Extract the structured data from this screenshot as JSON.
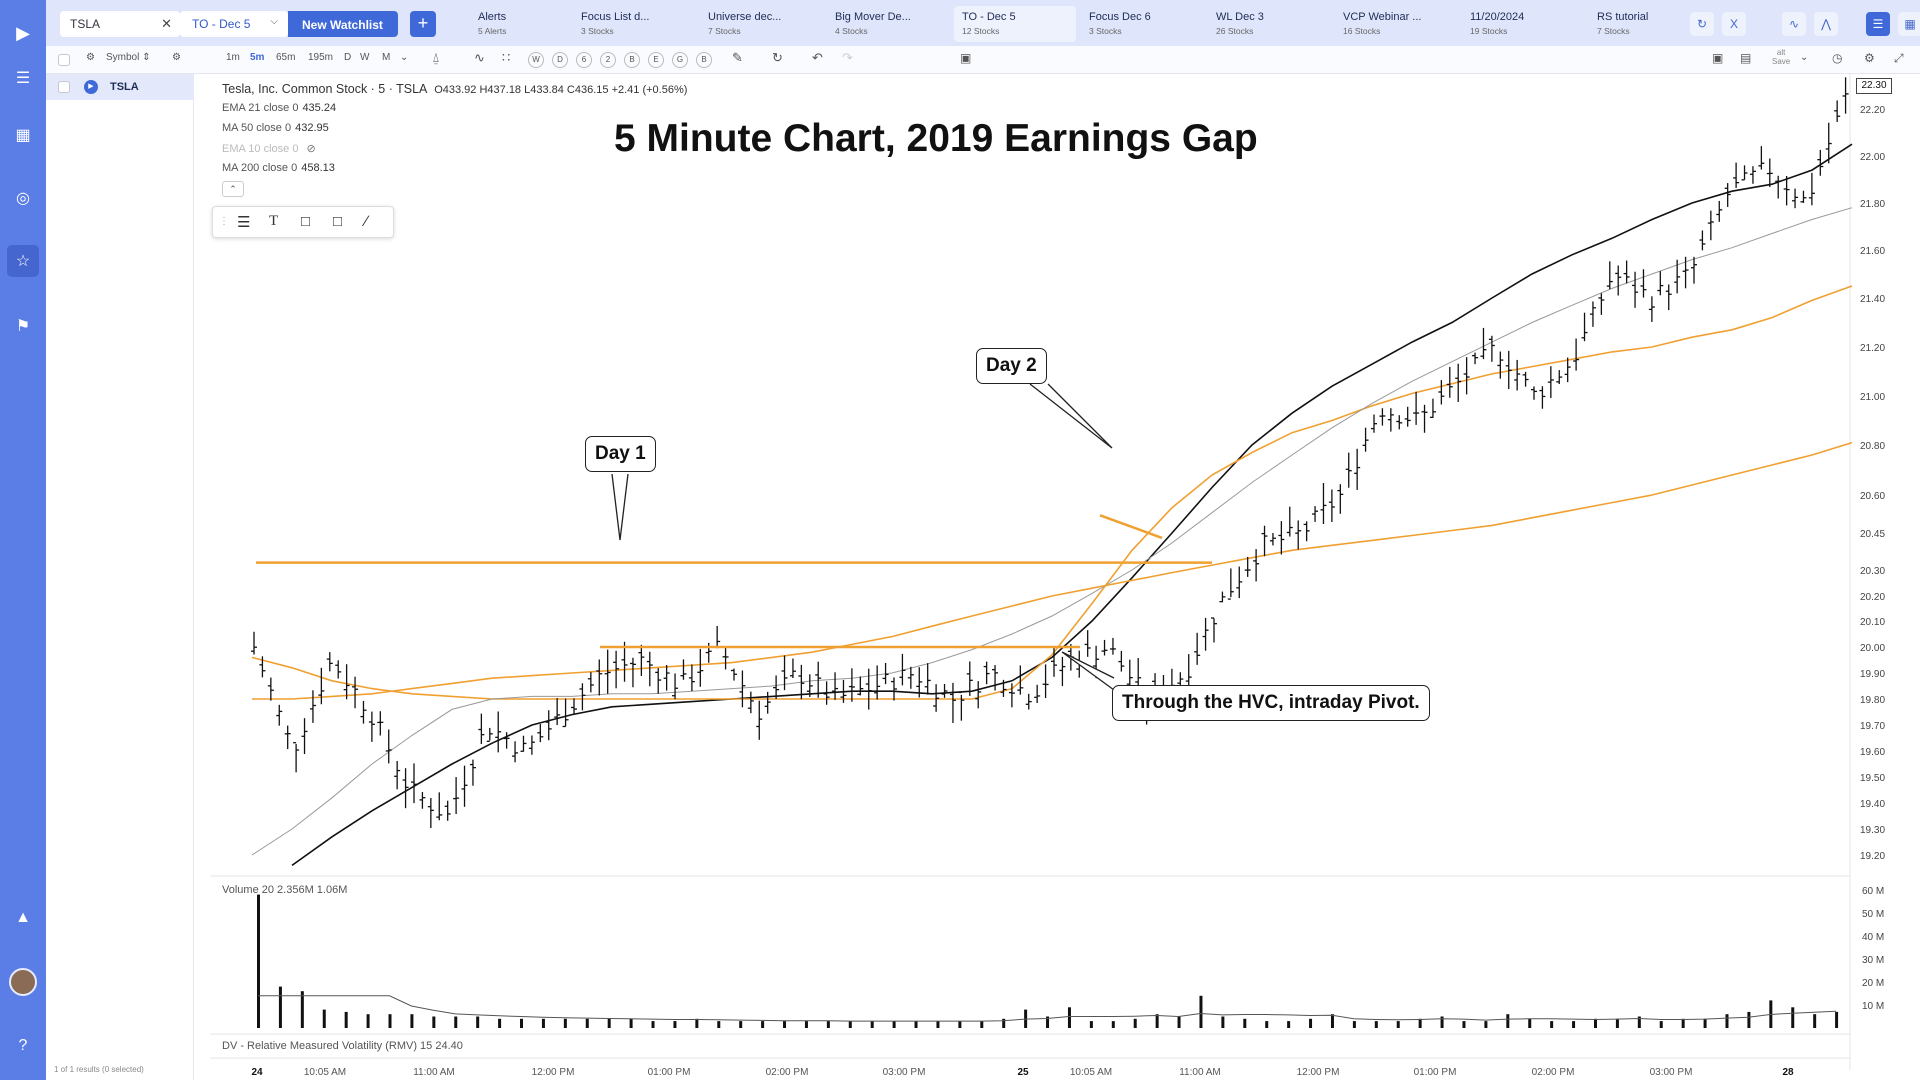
{
  "rail": {
    "icons": [
      "play-logo-icon",
      "menu-lines-icon",
      "layout-icon",
      "target-icon",
      "star-icon",
      "megaphone-icon",
      "graduation-cap-icon",
      "help-icon"
    ]
  },
  "topbar": {
    "search_value": "TSLA",
    "watchlist_label": "TO - Dec 5",
    "new_watchlist_label": "New Watchlist",
    "tabs": [
      {
        "label": "Alerts",
        "sub": "5 Alerts"
      },
      {
        "label": "Focus List d...",
        "sub": "3 Stocks"
      },
      {
        "label": "Universe dec...",
        "sub": "7 Stocks"
      },
      {
        "label": "Big Mover De...",
        "sub": "4 Stocks"
      },
      {
        "label": "TO - Dec 5",
        "sub": "12 Stocks"
      },
      {
        "label": "Focus Dec 6",
        "sub": "3 Stocks"
      },
      {
        "label": "WL Dec 3",
        "sub": "26 Stocks"
      },
      {
        "label": "VCP Webinar ...",
        "sub": "16 Stocks"
      },
      {
        "label": "11/20/2024",
        "sub": "19 Stocks"
      },
      {
        "label": "RS tutorial",
        "sub": "7 Stocks"
      }
    ]
  },
  "toolbar": {
    "symbol_label": "Symbol",
    "intervals": [
      "1m",
      "5m",
      "65m",
      "195m",
      "D",
      "W",
      "M"
    ],
    "active_interval": "5m",
    "circle_buttons": [
      "W",
      "D",
      "6",
      "2",
      "B",
      "E",
      "G",
      "B"
    ],
    "save_label": "Save",
    "alt_label": "alt"
  },
  "symlist": {
    "symbol": "TSLA",
    "footer": "1 of 1 results (0 selected)"
  },
  "chart": {
    "header": {
      "name": "Tesla, Inc. Common Stock · 5 · TSLA",
      "ohlc": "O433.92 H437.18 L433.84 C436.15 +2.41 (+0.56%)"
    },
    "legends": [
      {
        "label": "EMA 21 close 0",
        "value": "435.24"
      },
      {
        "label": "MA 50 close 0",
        "value": "432.95"
      },
      {
        "label": "EMA 10 close 0",
        "value": ""
      },
      {
        "label": "MA 200 close 0",
        "value": "458.13"
      }
    ],
    "title": "5 Minute Chart, 2019 Earnings Gap",
    "callouts": {
      "day1": "Day 1",
      "day2": "Day 2",
      "pivot": "Through the HVC, intraday Pivot."
    },
    "last_price": "22.30",
    "volume_legend": "Volume 20  2.356M  1.06M",
    "rmv_legend": "DV - Relative Measured Volatility (RMV) 15  24.40"
  },
  "chart_data": {
    "type": "line",
    "title": "5 Minute Chart, 2019 Earnings Gap",
    "xlabel": "",
    "ylabel": "",
    "y_ticks": [
      "22.20",
      "22.00",
      "21.80",
      "21.60",
      "21.40",
      "21.20",
      "21.00",
      "20.80",
      "20.60",
      "20.45",
      "20.30",
      "20.20",
      "20.10",
      "20.00",
      "19.90",
      "19.80",
      "19.70",
      "19.60",
      "19.50",
      "19.40",
      "19.30",
      "19.20"
    ],
    "volume_ticks": [
      "60 M",
      "50 M",
      "40 M",
      "30 M",
      "20 M",
      "10 M"
    ],
    "x_ticks": [
      {
        "label": "24",
        "bold": true
      },
      {
        "label": "10:05 AM"
      },
      {
        "label": "11:00 AM"
      },
      {
        "label": "12:00 PM"
      },
      {
        "label": "01:00 PM"
      },
      {
        "label": "02:00 PM"
      },
      {
        "label": "03:00 PM"
      },
      {
        "label": "25",
        "bold": true
      },
      {
        "label": "10:05 AM"
      },
      {
        "label": "11:00 AM"
      },
      {
        "label": "12:00 PM"
      },
      {
        "label": "01:00 PM"
      },
      {
        "label": "02:00 PM"
      },
      {
        "label": "03:00 PM"
      },
      {
        "label": "28",
        "bold": true
      }
    ],
    "series": [
      {
        "name": "EMA 21 close 0",
        "color": "#111111",
        "values": [
          19.05,
          19.16,
          19.27,
          19.37,
          19.46,
          19.55,
          19.63,
          19.7,
          19.74,
          19.77,
          19.78,
          19.79,
          19.8,
          19.81,
          19.82,
          19.83,
          19.83,
          19.82,
          19.83,
          19.87,
          19.96,
          20.1,
          20.27,
          20.45,
          20.63,
          20.8,
          20.93,
          21.04,
          21.13,
          21.22,
          21.3,
          21.4,
          21.5,
          21.58,
          21.65,
          21.73,
          21.8,
          21.85,
          21.88,
          21.94,
          22.05
        ]
      },
      {
        "name": "EMA 10 close 0",
        "color": "#f0a030",
        "values": [
          19.96,
          19.92,
          19.87,
          19.84,
          19.82,
          19.81,
          19.8,
          19.8,
          19.8,
          19.8,
          19.8,
          19.8,
          19.8,
          19.8,
          19.8,
          19.8,
          19.8,
          19.8,
          19.8,
          19.84,
          19.97,
          20.17,
          20.38,
          20.55,
          20.68,
          20.77,
          20.85,
          20.9,
          20.96,
          21.01,
          21.05,
          21.09,
          21.12,
          21.15,
          21.18,
          21.2,
          21.24,
          21.27,
          21.32,
          21.39,
          21.45
        ]
      },
      {
        "name": "MA 50 close 0",
        "color": "#999999",
        "values": [
          19.2,
          19.3,
          19.42,
          19.55,
          19.66,
          19.76,
          19.8,
          19.81,
          19.81,
          19.82,
          19.82,
          19.83,
          19.84,
          19.85,
          19.87,
          19.88,
          19.9,
          19.94,
          19.99,
          20.05,
          20.12,
          20.21,
          20.3,
          20.41,
          20.53,
          20.65,
          20.76,
          20.87,
          20.97,
          21.06,
          21.14,
          21.22,
          21.3,
          21.37,
          21.44,
          21.5,
          21.56,
          21.61,
          21.67,
          21.73,
          21.78
        ]
      },
      {
        "name": "MA 200 close 0",
        "color": "#f0a030",
        "values": [
          19.8,
          19.8,
          19.81,
          19.82,
          19.84,
          19.86,
          19.88,
          19.89,
          19.9,
          19.91,
          19.92,
          19.93,
          19.94,
          19.96,
          19.98,
          20.01,
          20.04,
          20.08,
          20.12,
          20.16,
          20.2,
          20.23,
          20.26,
          20.29,
          20.32,
          20.35,
          20.38,
          20.4,
          20.42,
          20.44,
          20.46,
          20.48,
          20.51,
          20.54,
          20.57,
          20.6,
          20.64,
          20.68,
          20.72,
          20.76,
          20.81
        ]
      }
    ],
    "price_path": [
      20.0,
      19.6,
      19.95,
      19.75,
      19.45,
      19.35,
      19.7,
      19.6,
      19.75,
      19.9,
      19.95,
      19.85,
      20.0,
      19.75,
      19.9,
      19.8,
      19.85,
      19.9,
      19.8,
      19.9,
      19.82,
      19.95,
      20.0,
      19.8,
      19.9,
      20.2,
      20.4,
      20.45,
      20.6,
      20.95,
      20.9,
      21.05,
      21.2,
      21.0,
      21.15,
      21.5,
      21.4,
      21.5,
      21.85,
      21.95,
      21.8,
      22.25
    ],
    "horizontal_lines": [
      20.33,
      20.0
    ],
    "volume": [
      58,
      18,
      16,
      8,
      7,
      6,
      6,
      6,
      5,
      5,
      5,
      4,
      4,
      4,
      4,
      4,
      4,
      4,
      3,
      3,
      4,
      3,
      3,
      3,
      3,
      3,
      3,
      3,
      3,
      3,
      3,
      3,
      3,
      3,
      4,
      8,
      5,
      9,
      3,
      3,
      4,
      6,
      5,
      14,
      5,
      4,
      3,
      3,
      4,
      6,
      3,
      3,
      3,
      4,
      5,
      3,
      3,
      6,
      4,
      3,
      3,
      4,
      4,
      5,
      3,
      4,
      4,
      6,
      7,
      12,
      9,
      6,
      7
    ]
  }
}
